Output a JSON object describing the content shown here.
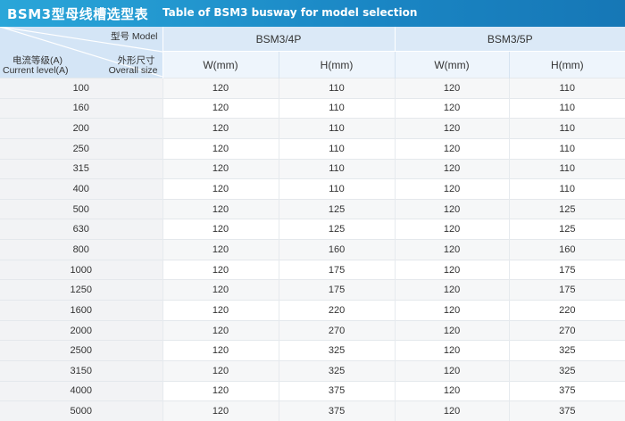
{
  "title": {
    "zh": "BSM3型母线槽选型表",
    "en": "Table of BSM3 busway for model selection"
  },
  "corner": {
    "model_label": "型号 Model",
    "size_zh": "外形尺寸",
    "size_en": "Overall size",
    "current_zh": "电流等级(A)",
    "current_en": "Current level(A)"
  },
  "models": [
    "BSM3/4P",
    "BSM3/5P"
  ],
  "size_headers": [
    "W(mm)",
    "H(mm)",
    "W(mm)",
    "H(mm)"
  ],
  "rows": [
    {
      "current": "100",
      "w4": "120",
      "h4": "110",
      "w5": "120",
      "h5": "110"
    },
    {
      "current": "160",
      "w4": "120",
      "h4": "110",
      "w5": "120",
      "h5": "110"
    },
    {
      "current": "200",
      "w4": "120",
      "h4": "110",
      "w5": "120",
      "h5": "110"
    },
    {
      "current": "250",
      "w4": "120",
      "h4": "110",
      "w5": "120",
      "h5": "110"
    },
    {
      "current": "315",
      "w4": "120",
      "h4": "110",
      "w5": "120",
      "h5": "110"
    },
    {
      "current": "400",
      "w4": "120",
      "h4": "110",
      "w5": "120",
      "h5": "110"
    },
    {
      "current": "500",
      "w4": "120",
      "h4": "125",
      "w5": "120",
      "h5": "125"
    },
    {
      "current": "630",
      "w4": "120",
      "h4": "125",
      "w5": "120",
      "h5": "125"
    },
    {
      "current": "800",
      "w4": "120",
      "h4": "160",
      "w5": "120",
      "h5": "160"
    },
    {
      "current": "1000",
      "w4": "120",
      "h4": "175",
      "w5": "120",
      "h5": "175"
    },
    {
      "current": "1250",
      "w4": "120",
      "h4": "175",
      "w5": "120",
      "h5": "175"
    },
    {
      "current": "1600",
      "w4": "120",
      "h4": "220",
      "w5": "120",
      "h5": "220"
    },
    {
      "current": "2000",
      "w4": "120",
      "h4": "270",
      "w5": "120",
      "h5": "270"
    },
    {
      "current": "2500",
      "w4": "120",
      "h4": "325",
      "w5": "120",
      "h5": "325"
    },
    {
      "current": "3150",
      "w4": "120",
      "h4": "325",
      "w5": "120",
      "h5": "325"
    },
    {
      "current": "4000",
      "w4": "120",
      "h4": "375",
      "w5": "120",
      "h5": "375"
    },
    {
      "current": "5000",
      "w4": "120",
      "h4": "375",
      "w5": "120",
      "h5": "375"
    }
  ]
}
